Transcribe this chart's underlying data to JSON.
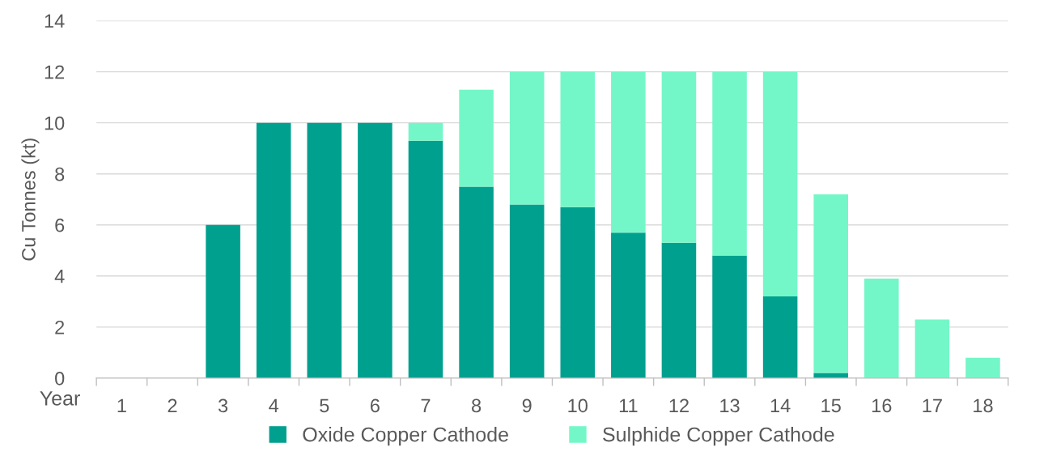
{
  "chart_data": {
    "type": "bar",
    "stacked": true,
    "xlabel": "Year",
    "ylabel": "Cu Tonnes (kt)",
    "categories": [
      "1",
      "2",
      "3",
      "4",
      "5",
      "6",
      "7",
      "8",
      "9",
      "10",
      "11",
      "12",
      "13",
      "14",
      "15",
      "16",
      "17",
      "18"
    ],
    "series": [
      {
        "name": "Oxide Copper Cathode",
        "color": "#00a08f",
        "values": [
          0,
          0,
          6.0,
          10.0,
          10.0,
          10.0,
          9.3,
          7.5,
          6.8,
          6.7,
          5.7,
          5.3,
          4.8,
          3.2,
          0.2,
          0,
          0,
          0
        ]
      },
      {
        "name": "Sulphide Copper Cathode",
        "color": "#74f7c8",
        "values": [
          0,
          0,
          0,
          0,
          0,
          0,
          0.7,
          3.8,
          5.2,
          5.3,
          6.3,
          6.7,
          7.2,
          8.8,
          7.0,
          3.9,
          2.3,
          0.8
        ]
      }
    ],
    "ylim": [
      0,
      14
    ],
    "yticks": [
      0,
      2,
      4,
      6,
      8,
      10,
      12,
      14
    ],
    "grid": "y",
    "legend": "bottom"
  }
}
